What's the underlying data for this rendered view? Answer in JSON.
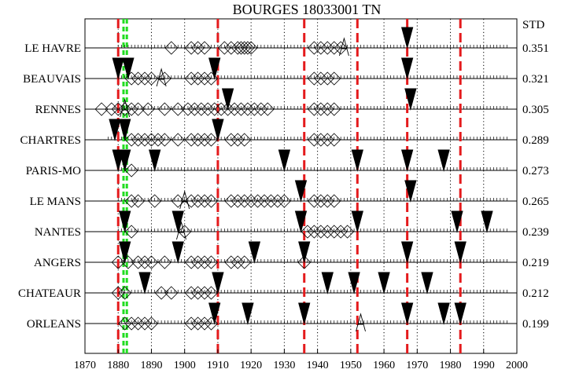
{
  "chart_data": {
    "type": "scatter",
    "title": "BOURGES  18033001  TN",
    "std_header": "STD",
    "x_ticks": [
      1870,
      1880,
      1890,
      1900,
      1910,
      1920,
      1930,
      1940,
      1950,
      1960,
      1970,
      1980,
      1990,
      2000
    ],
    "xlim": [
      1870,
      2000
    ],
    "grid": "dotted vertical every 10 years",
    "red_dashed_years": [
      1880,
      1910,
      1936,
      1952,
      1967,
      1983
    ],
    "green_dashed_years": [
      1881.6,
      1882.6
    ],
    "series": [
      {
        "name": "LE HAVRE",
        "std": "0.351",
        "coverage": [
          1880,
          1997
        ],
        "diamonds": [
          1896,
          1902,
          1904,
          1906,
          1912,
          1914,
          1916,
          1917,
          1918,
          1919,
          1920,
          1939,
          1941,
          1943,
          1945,
          1947
        ],
        "breaks": [
          1967
        ],
        "a_marks": [
          1948
        ]
      },
      {
        "name": "BEAUVAIS",
        "std": "0.321",
        "coverage": [
          1880,
          1997
        ],
        "diamonds": [
          1884,
          1886,
          1888,
          1890,
          1894,
          1902,
          1904,
          1906,
          1908,
          1939,
          1941,
          1943,
          1945
        ],
        "breaks": [
          1880,
          1883,
          1909,
          1967
        ],
        "a_marks": [
          1893
        ]
      },
      {
        "name": "RENNES",
        "std": "0.305",
        "coverage": [
          1879,
          1997
        ],
        "diamonds": [
          1875,
          1878,
          1880,
          1882,
          1884,
          1886,
          1889,
          1894,
          1898,
          1901,
          1903,
          1905,
          1907,
          1909,
          1911,
          1913,
          1915,
          1917,
          1919,
          1921,
          1923,
          1925,
          1939,
          1941,
          1943,
          1945
        ],
        "breaks": [
          1913,
          1968
        ],
        "a_marks": [
          1882
        ]
      },
      {
        "name": "CHARTRES",
        "std": "0.289",
        "coverage": [
          1877,
          1997
        ],
        "diamonds": [
          1884,
          1886,
          1888,
          1890,
          1892,
          1894,
          1898,
          1902,
          1904,
          1906,
          1908,
          1914,
          1916,
          1918,
          1939,
          1941,
          1943,
          1945
        ],
        "breaks": [
          1879,
          1882,
          1910
        ],
        "a_marks": []
      },
      {
        "name": "PARIS-MO",
        "std": "0.273",
        "coverage": [
          1880,
          1997
        ],
        "diamonds": [
          1884
        ],
        "breaks": [
          1880,
          1882,
          1891,
          1930,
          1952,
          1967,
          1978
        ],
        "a_marks": []
      },
      {
        "name": "LE MANS",
        "std": "0.265",
        "coverage": [
          1880,
          1997
        ],
        "diamonds": [
          1884,
          1886,
          1891,
          1898,
          1902,
          1904,
          1906,
          1908,
          1914,
          1916,
          1918,
          1920,
          1922,
          1924,
          1926,
          1928,
          1930,
          1939,
          1941,
          1943,
          1945
        ],
        "breaks": [
          1935,
          1968
        ],
        "a_marks": [
          1900
        ]
      },
      {
        "name": "NANTES",
        "std": "0.239",
        "coverage": [
          1880,
          1997
        ],
        "diamonds": [
          1884,
          1900,
          1937,
          1939,
          1941,
          1943,
          1945,
          1947,
          1949
        ],
        "breaks": [
          1882,
          1898,
          1935,
          1952,
          1982,
          1991
        ],
        "a_marks": [
          1899
        ]
      },
      {
        "name": "ANGERS",
        "std": "0.219",
        "coverage": [
          1880,
          1997
        ],
        "diamonds": [
          1880,
          1883,
          1886,
          1888,
          1890,
          1894,
          1902,
          1904,
          1906,
          1908,
          1914,
          1916,
          1918,
          1936
        ],
        "breaks": [
          1882,
          1898,
          1921,
          1936,
          1967,
          1983
        ],
        "a_marks": []
      },
      {
        "name": "CHATEAUR",
        "std": "0.212",
        "coverage": [
          1880,
          1997
        ],
        "diamonds": [
          1880,
          1882,
          1893,
          1896,
          1902,
          1904,
          1906,
          1908
        ],
        "breaks": [
          1888,
          1910,
          1943,
          1951,
          1960,
          1973
        ],
        "a_marks": []
      },
      {
        "name": "ORLEANS",
        "std": "0.199",
        "coverage": [
          1880,
          1997
        ],
        "diamonds": [
          1882,
          1884,
          1886,
          1888,
          1890,
          1902,
          1904,
          1906,
          1908
        ],
        "breaks": [
          1909,
          1919,
          1936,
          1967,
          1978,
          1983
        ],
        "a_marks": [
          1953
        ]
      }
    ]
  }
}
